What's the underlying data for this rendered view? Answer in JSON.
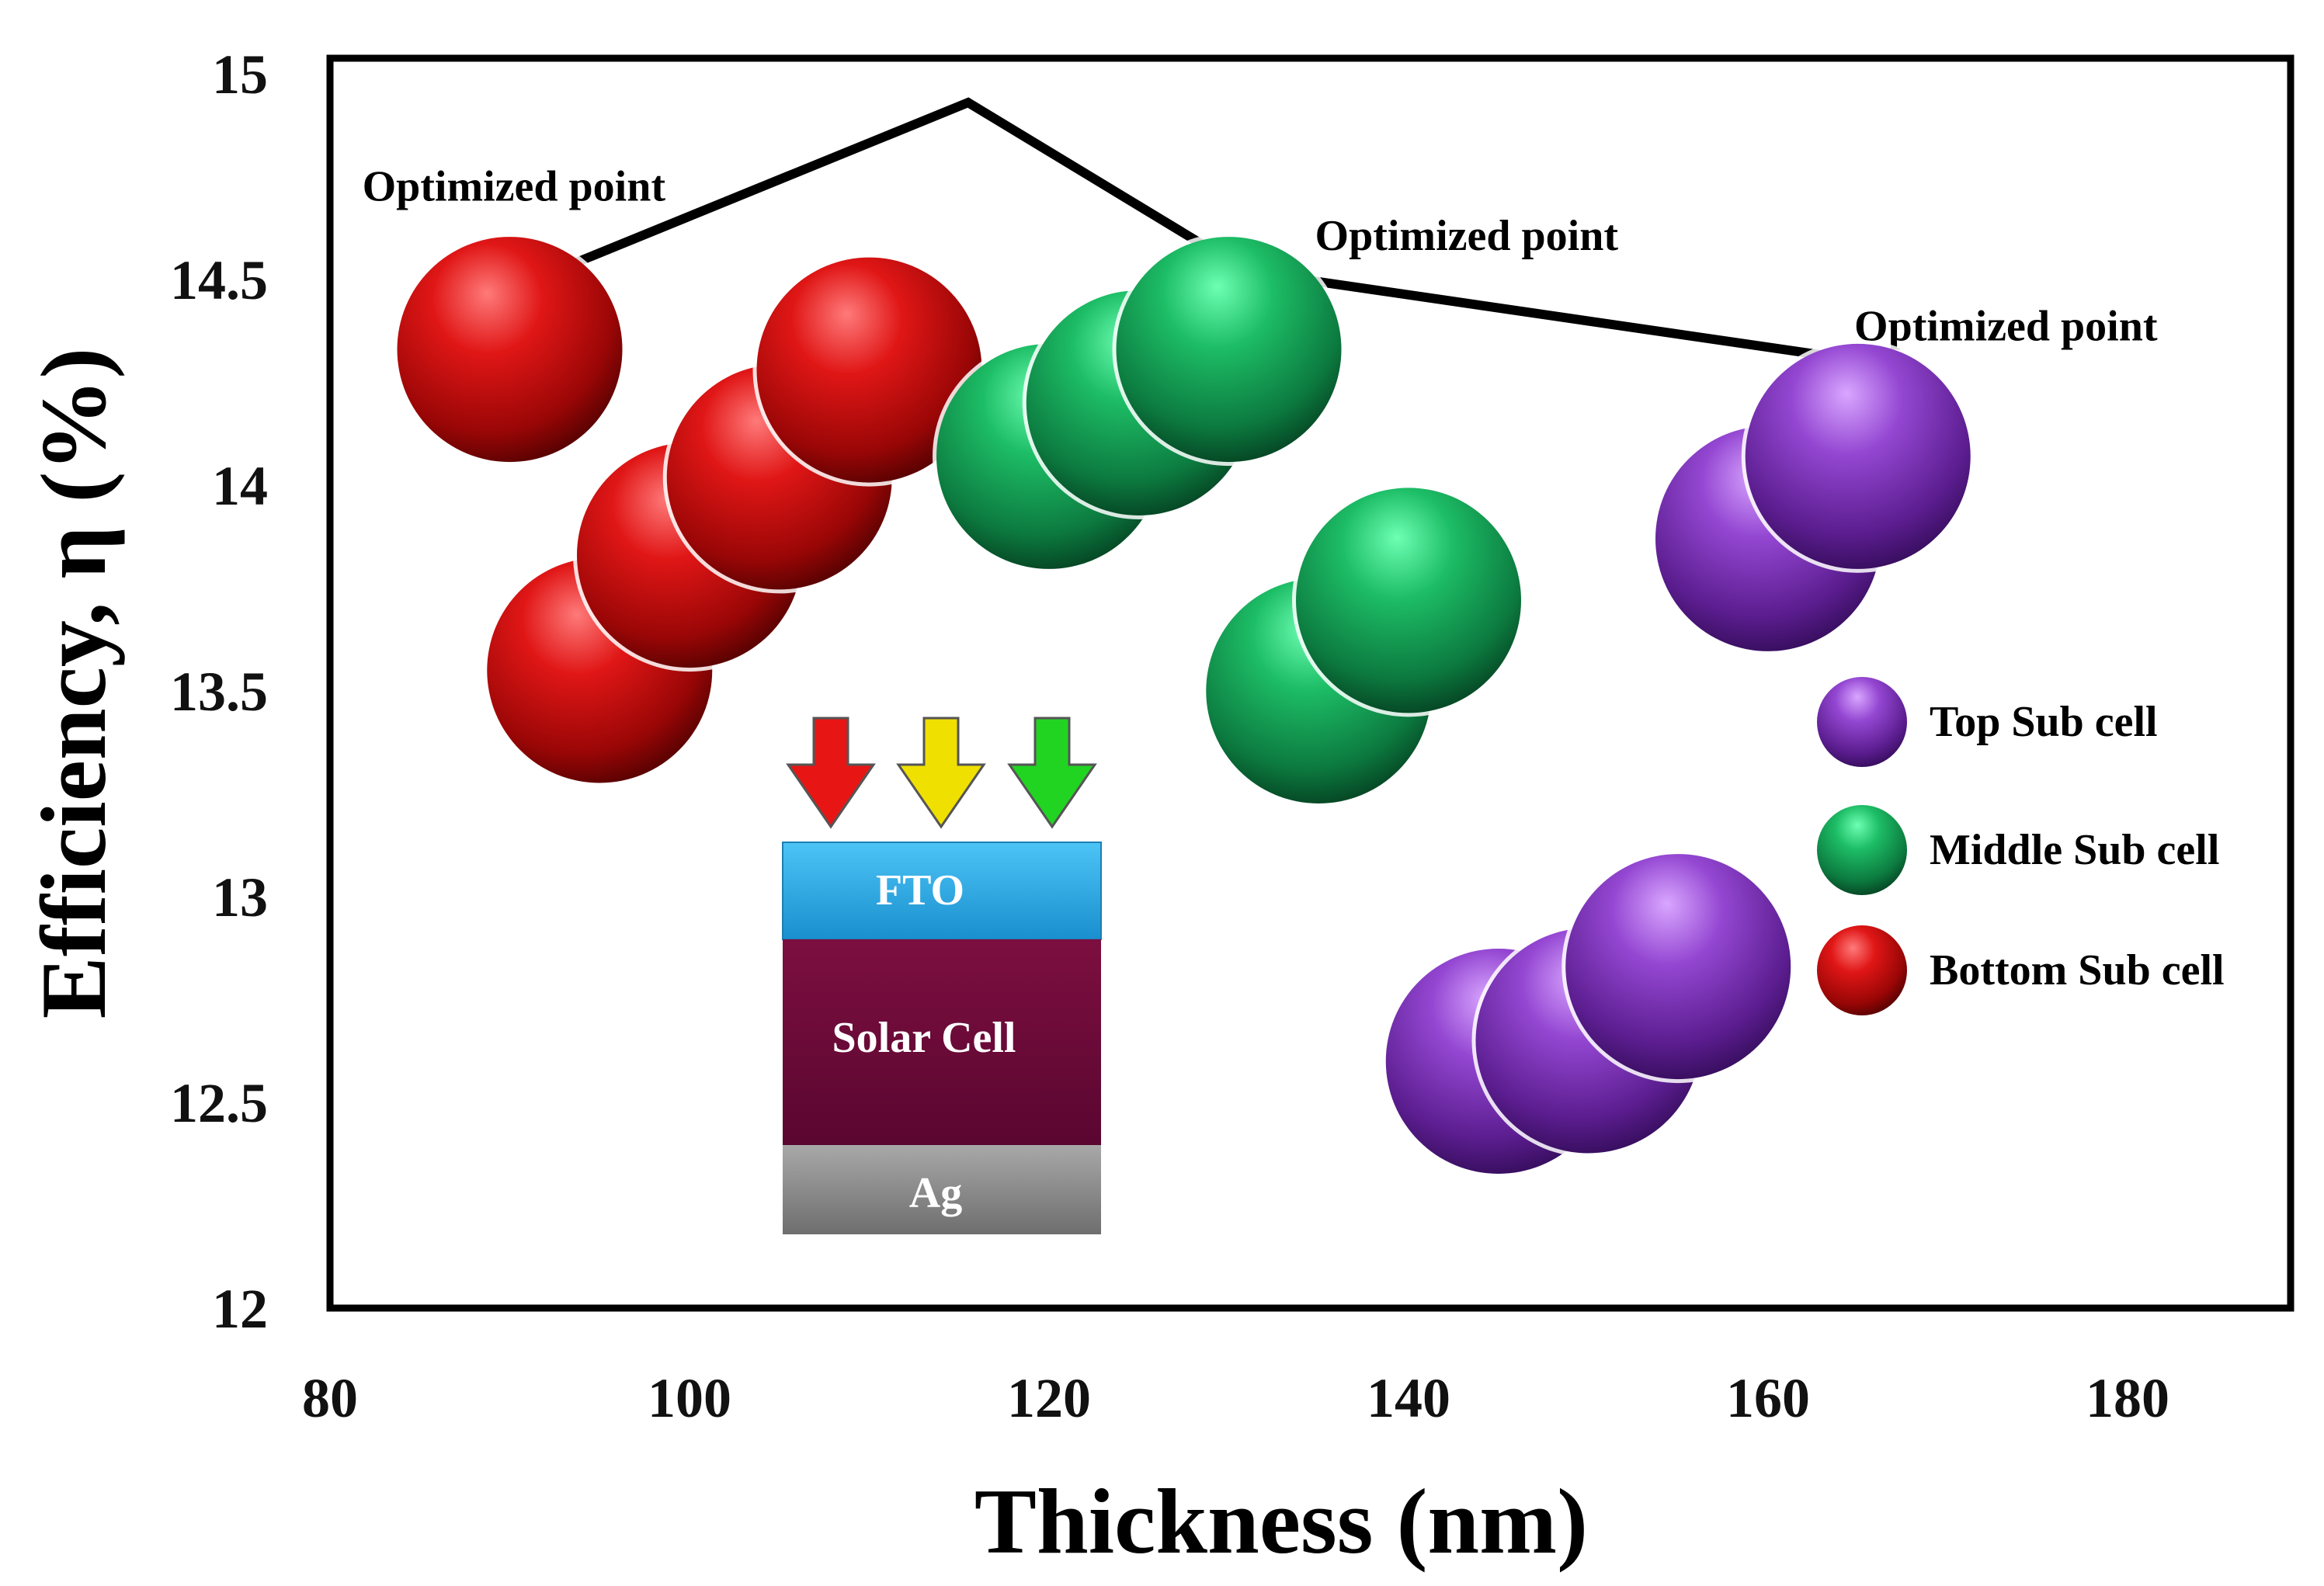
{
  "chart_data": {
    "type": "scatter",
    "title": "",
    "xlabel": "Thickness (nm)",
    "ylabel": "Efficiency, η (%)",
    "xlim": [
      80,
      190
    ],
    "ylim": [
      12,
      15
    ],
    "xticks": [
      80,
      100,
      120,
      140,
      160,
      180
    ],
    "yticks": [
      12,
      12.5,
      13,
      13.5,
      14,
      14.5,
      15
    ],
    "grid": false,
    "legend": "right",
    "series": [
      {
        "name": "Bottom Sub cell",
        "color": "#d01010",
        "points": [
          {
            "x": 95,
            "y": 13.55
          },
          {
            "x": 100,
            "y": 13.83
          },
          {
            "x": 105,
            "y": 14.02
          },
          {
            "x": 110,
            "y": 14.28
          },
          {
            "x": 90,
            "y": 14.33
          }
        ]
      },
      {
        "name": "Middle Sub cell",
        "color": "#17a655",
        "points": [
          {
            "x": 120,
            "y": 14.07
          },
          {
            "x": 125,
            "y": 14.2
          },
          {
            "x": 130,
            "y": 14.33
          },
          {
            "x": 135,
            "y": 13.5
          },
          {
            "x": 140,
            "y": 13.72
          }
        ]
      },
      {
        "name": "Top Sub cell",
        "color": "#8a3fc6",
        "points": [
          {
            "x": 145,
            "y": 12.6
          },
          {
            "x": 150,
            "y": 12.65
          },
          {
            "x": 155,
            "y": 12.83
          },
          {
            "x": 160,
            "y": 13.87
          },
          {
            "x": 165,
            "y": 14.07
          }
        ]
      }
    ],
    "optimized_line": [
      {
        "x": 92.5,
        "y": 14.52
      },
      {
        "x": 115.5,
        "y": 14.93
      },
      {
        "x": 131,
        "y": 14.52
      },
      {
        "x": 164,
        "y": 14.31
      }
    ],
    "annotations": [
      {
        "text": "Optimized point",
        "x": 80.5,
        "y": 14.72
      },
      {
        "text": "Optimized point",
        "x": 133.5,
        "y": 14.6
      },
      {
        "text": "Optimized point",
        "x": 163.5,
        "y": 14.38
      }
    ],
    "inset": {
      "layers": [
        "FTO",
        "Solar Cell",
        "Ag"
      ],
      "arrow_colors": [
        "#e81515",
        "#f0e000",
        "#22d422"
      ],
      "layer_colors": [
        "#22a6e0",
        "#6b0a35",
        "#8a8a8a"
      ]
    }
  }
}
